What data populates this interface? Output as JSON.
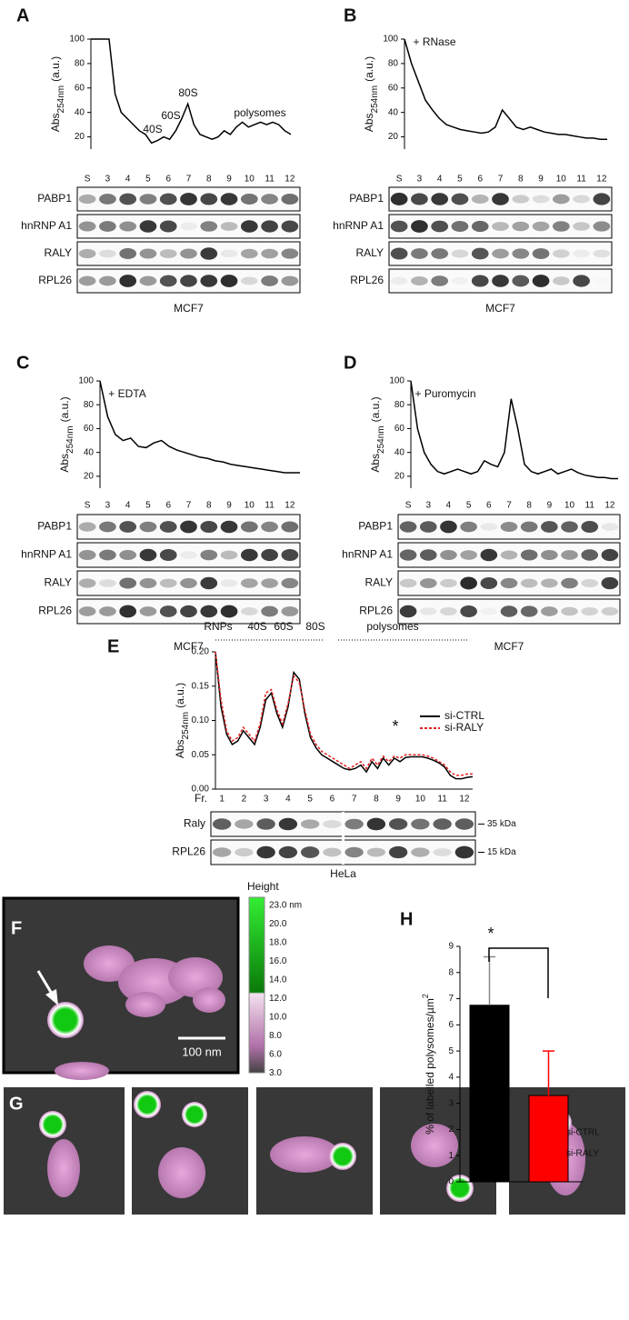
{
  "chart_data": [
    {
      "type": "profile",
      "panel": "A",
      "y_label": [
        "Abs",
        "254nm",
        "(a.u.)"
      ],
      "ylim": [
        10,
        100
      ],
      "yticks": [
        20,
        40,
        60,
        80,
        100
      ],
      "annotations": [
        "40S",
        "60S",
        "80S",
        "polysomes"
      ],
      "values": [
        100,
        100,
        100,
        100,
        55,
        40,
        35,
        30,
        25,
        22,
        15,
        17,
        20,
        18,
        25,
        35,
        47,
        30,
        22,
        20,
        18,
        20,
        25,
        22,
        28,
        32,
        28,
        30,
        32,
        30,
        32,
        30,
        25,
        22
      ],
      "blot": {
        "lanes": [
          "S",
          "3",
          "4",
          "5",
          "6",
          "7",
          "8",
          "9",
          "10",
          "11",
          "12"
        ],
        "rows": [
          "PABP1",
          "hnRNP A1",
          "RALY",
          "RPL26"
        ],
        "cell_line": "MCF7"
      }
    },
    {
      "type": "profile",
      "panel": "B",
      "y_label": [
        "Abs",
        "254nm",
        "(a.u.)"
      ],
      "ylim": [
        10,
        100
      ],
      "yticks": [
        20,
        40,
        60,
        80,
        100
      ],
      "annotations": [
        "+ RNase"
      ],
      "values": [
        100,
        80,
        65,
        50,
        42,
        35,
        30,
        28,
        26,
        25,
        24,
        23,
        24,
        28,
        42,
        35,
        28,
        26,
        28,
        26,
        24,
        23,
        22,
        22,
        21,
        20,
        19,
        19,
        18,
        18
      ],
      "blot": {
        "lanes": [
          "S",
          "3",
          "4",
          "5",
          "6",
          "7",
          "8",
          "9",
          "10",
          "11",
          "12"
        ],
        "rows": [
          "PABP1",
          "hnRNP A1",
          "RALY",
          "RPL26"
        ],
        "cell_line": "MCF7"
      }
    },
    {
      "type": "profile",
      "panel": "C",
      "y_label": [
        "Abs",
        "254nm",
        "(a.u.)"
      ],
      "ylim": [
        10,
        100
      ],
      "yticks": [
        20,
        40,
        60,
        80,
        100
      ],
      "annotations": [
        "+ EDTA"
      ],
      "values": [
        100,
        70,
        55,
        50,
        52,
        45,
        44,
        48,
        50,
        45,
        42,
        40,
        38,
        36,
        35,
        33,
        32,
        30,
        29,
        28,
        27,
        26,
        25,
        24,
        23,
        23,
        23
      ],
      "blot": {
        "lanes": [
          "S",
          "3",
          "4",
          "5",
          "6",
          "7",
          "8",
          "9",
          "10",
          "11",
          "12"
        ],
        "rows": [
          "PABP1",
          "hnRNP A1",
          "RALY",
          "RPL26"
        ],
        "cell_line": "MCF7"
      }
    },
    {
      "type": "profile",
      "panel": "D",
      "y_label": [
        "Abs",
        "254nm",
        "(a.u.)"
      ],
      "ylim": [
        10,
        100
      ],
      "yticks": [
        20,
        40,
        60,
        80,
        100
      ],
      "annotations": [
        "+ Puromycin"
      ],
      "values": [
        100,
        60,
        40,
        30,
        24,
        22,
        24,
        26,
        24,
        22,
        24,
        33,
        30,
        28,
        40,
        85,
        60,
        30,
        24,
        22,
        24,
        26,
        22,
        24,
        26,
        23,
        21,
        20,
        19,
        19,
        18,
        18
      ],
      "blot": {
        "lanes": [
          "S",
          "3",
          "4",
          "5",
          "6",
          "7",
          "8",
          "9",
          "10",
          "11",
          "12"
        ],
        "rows": [
          "PABP1",
          "hnRNP A1",
          "RALY",
          "RPL26"
        ],
        "cell_line": "MCF7"
      }
    },
    {
      "type": "line",
      "panel": "E",
      "y_label": [
        "Abs",
        "254nm",
        "(a.u.)"
      ],
      "ylim": [
        0,
        0.2
      ],
      "yticks": [
        {
          "value": 0,
          "label": "0.00"
        },
        {
          "value": 0.05,
          "label": "0.05"
        },
        {
          "value": 0.1,
          "label": "0.10"
        },
        {
          "value": 0.15,
          "label": "0.15"
        },
        {
          "value": 0.2,
          "label": "0.20"
        }
      ],
      "annotations": [
        "RNPs",
        "40S",
        "60S",
        "80S",
        "polysomes",
        "*"
      ],
      "series": [
        {
          "name": "si-CTRL",
          "color": "#000000",
          "values": [
            0.2,
            0.12,
            0.08,
            0.065,
            0.07,
            0.085,
            0.075,
            0.065,
            0.09,
            0.13,
            0.14,
            0.11,
            0.09,
            0.12,
            0.17,
            0.16,
            0.11,
            0.075,
            0.06,
            0.05,
            0.045,
            0.04,
            0.035,
            0.03,
            0.028,
            0.03,
            0.035,
            0.025,
            0.04,
            0.03,
            0.045,
            0.035,
            0.045,
            0.04,
            0.046,
            0.047,
            0.047,
            0.047,
            0.045,
            0.042,
            0.038,
            0.032,
            0.02,
            0.015,
            0.015,
            0.017,
            0.018
          ]
        },
        {
          "name": "si-RALY",
          "color": "#e02020",
          "values": [
            0.2,
            0.13,
            0.085,
            0.07,
            0.075,
            0.09,
            0.08,
            0.07,
            0.095,
            0.14,
            0.145,
            0.115,
            0.095,
            0.125,
            0.165,
            0.155,
            0.115,
            0.08,
            0.065,
            0.055,
            0.05,
            0.045,
            0.04,
            0.035,
            0.03,
            0.035,
            0.04,
            0.03,
            0.045,
            0.035,
            0.048,
            0.04,
            0.048,
            0.045,
            0.05,
            0.05,
            0.05,
            0.05,
            0.048,
            0.045,
            0.04,
            0.035,
            0.025,
            0.02,
            0.02,
            0.022,
            0.022
          ]
        }
      ],
      "blot": {
        "lane_prefix": "Fr.",
        "lanes": [
          "1",
          "2",
          "3",
          "4",
          "5",
          "6",
          "7",
          "8",
          "9",
          "10",
          "11",
          "12"
        ],
        "rows": [
          "Raly",
          "RPL26"
        ],
        "markers": [
          "35 kDa",
          "15 kDa"
        ],
        "cell_line": "HeLa"
      }
    },
    {
      "type": "bar",
      "panel": "H",
      "y_label": [
        "% of labelled polysomes/µm",
        "2"
      ],
      "ylim": [
        0,
        9
      ],
      "yticks": [
        0,
        1,
        2,
        3,
        4,
        5,
        6,
        7,
        8,
        9
      ],
      "annotations": [
        "*"
      ],
      "series": [
        {
          "name": "si-CTRL",
          "color": "#000000",
          "values": [
            6.75
          ],
          "errors": [
            1.85
          ]
        },
        {
          "name": "si-RALY",
          "color": "#ff0000",
          "values": [
            3.3
          ],
          "errors": [
            1.7
          ]
        }
      ]
    }
  ],
  "afm": {
    "panel_f": "F",
    "panel_g": "G",
    "colorbar_title": "Height",
    "colorbar_labels": [
      "23.0 nm",
      "20.0",
      "18.0",
      "16.0",
      "14.0",
      "12.0",
      "10.0",
      "8.0",
      "6.0",
      "3.0"
    ],
    "scale_bar": "100 nm"
  }
}
